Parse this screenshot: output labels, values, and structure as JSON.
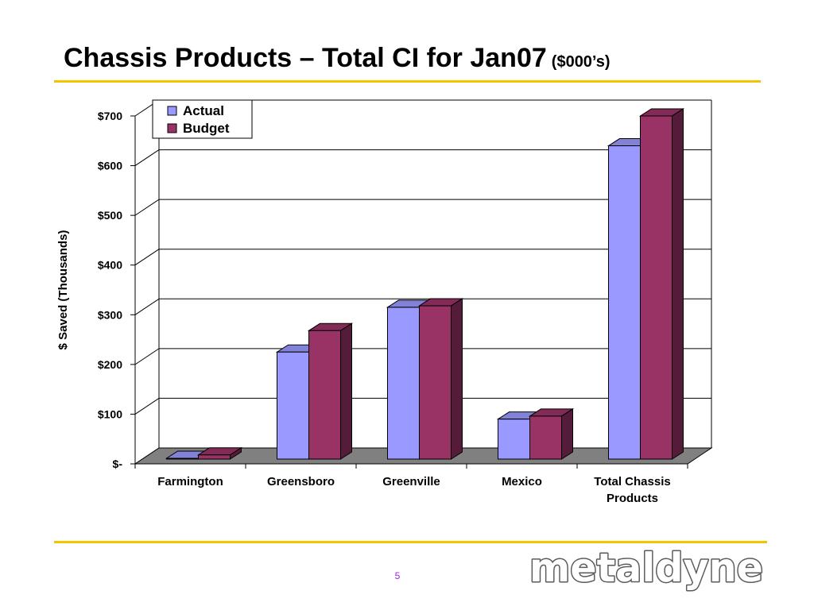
{
  "slide": {
    "title": "Chassis Products – Total CI for Jan07",
    "title_unit": "($000’s)",
    "page_number": "5",
    "logo_text": "metaldyne"
  },
  "colors": {
    "actual": "#9999ff",
    "budget": "#993366",
    "accent_rule": "#f5c400",
    "floor": "#808080"
  },
  "chart_data": {
    "type": "bar",
    "title": "",
    "xlabel": "",
    "ylabel": "$ Saved (Thousands)",
    "categories": [
      "Farmington",
      "Greensboro",
      "Greenville",
      "Mexico",
      "Total Chassis Products"
    ],
    "series": [
      {
        "name": "Actual",
        "values": [
          5,
          225,
          315,
          90,
          640
        ]
      },
      {
        "name": "Budget",
        "values": [
          18,
          268,
          318,
          96,
          700
        ]
      }
    ],
    "ylim": [
      0,
      700
    ],
    "yticks": [
      0,
      100,
      200,
      300,
      400,
      500,
      600,
      700
    ],
    "ytick_labels": [
      "$-",
      "$100",
      "$200",
      "$300",
      "$400",
      "$500",
      "$600",
      "$700"
    ],
    "legend": {
      "position": "top-left",
      "entries": [
        "Actual",
        "Budget"
      ]
    },
    "grid": true,
    "style": "3d-clustered-column"
  }
}
